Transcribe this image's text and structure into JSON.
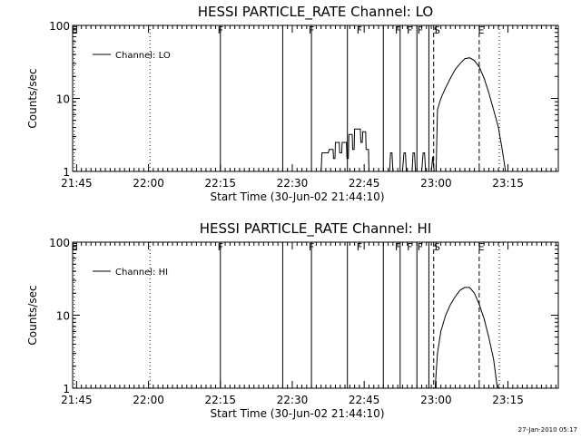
{
  "footer": {
    "timestamp": "27-Jan-2010 05:17"
  },
  "chart_data": [
    {
      "type": "line",
      "title": "HESSI PARTICLE_RATE Channel: LO",
      "xlabel": "Start Time (30-Jun-02 21:44:10)",
      "ylabel": "Counts/sec",
      "y_scale": "log",
      "ylim": [
        1,
        100
      ],
      "y_ticks": [
        "1",
        "10",
        "100"
      ],
      "x_ticks": [
        "21:45",
        "22:00",
        "22:15",
        "22:30",
        "22:45",
        "23:00",
        "23:15"
      ],
      "x_tick_minutes": [
        105,
        120,
        135,
        150,
        165,
        180,
        195
      ],
      "xlim_minutes": [
        104.17,
        205.5
      ],
      "legend": {
        "position": "top-left",
        "entries": [
          "Channel: LO"
        ]
      },
      "markers": {
        "E_dotted": [
          104.5,
          120.3,
          193.2
        ],
        "F_solid": [
          135.0,
          148.0,
          154.0,
          161.5,
          169.0,
          172.5,
          176.0,
          178.5
        ],
        "S_dashed": 179.5,
        "E_dashed": 189.0
      },
      "marker_labels": [
        {
          "text": "E",
          "t": 104.6
        },
        {
          "text": "F",
          "t": 135.0
        },
        {
          "text": "F",
          "t": 154.0
        },
        {
          "text": "F",
          "t": 164.0
        },
        {
          "text": "F",
          "t": 172.0
        },
        {
          "text": "F",
          "t": 174.5
        },
        {
          "text": "F",
          "t": 176.7
        },
        {
          "text": "S",
          "t": 180.2
        },
        {
          "text": "E",
          "t": 189.4
        }
      ],
      "series": [
        {
          "name": "Channel: LO",
          "segments": [
            [
              [
                156.0,
                1.0
              ],
              [
                156.2,
                1.8
              ],
              [
                157.5,
                1.8
              ],
              [
                157.7,
                2.0
              ],
              [
                158.5,
                2.0
              ],
              [
                158.6,
                1.5
              ],
              [
                158.9,
                1.5
              ],
              [
                159.0,
                2.5
              ],
              [
                159.8,
                2.5
              ],
              [
                159.9,
                1.8
              ],
              [
                160.3,
                1.8
              ],
              [
                160.4,
                2.5
              ],
              [
                161.3,
                2.5
              ],
              [
                161.4,
                1.5
              ],
              [
                161.7,
                1.5
              ],
              [
                161.8,
                3.2
              ],
              [
                162.5,
                3.2
              ],
              [
                162.6,
                2.0
              ],
              [
                162.9,
                2.0
              ],
              [
                163.0,
                3.8
              ],
              [
                164.2,
                3.8
              ],
              [
                164.3,
                2.5
              ],
              [
                164.6,
                2.5
              ],
              [
                164.7,
                3.5
              ],
              [
                165.3,
                3.5
              ],
              [
                165.4,
                2.0
              ],
              [
                165.9,
                2.0
              ],
              [
                166.0,
                1.0
              ]
            ],
            [
              [
                170.3,
                1.0
              ],
              [
                170.5,
                1.8
              ],
              [
                170.8,
                1.8
              ],
              [
                171.0,
                1.0
              ]
            ],
            [
              [
                173.0,
                1.0
              ],
              [
                173.3,
                1.8
              ],
              [
                173.6,
                1.8
              ],
              [
                173.8,
                1.0
              ]
            ],
            [
              [
                175.0,
                1.0
              ],
              [
                175.2,
                1.8
              ],
              [
                175.5,
                1.8
              ],
              [
                175.7,
                1.0
              ]
            ],
            [
              [
                177.0,
                1.0
              ],
              [
                177.3,
                1.8
              ],
              [
                177.6,
                1.8
              ],
              [
                177.8,
                1.0
              ]
            ],
            [
              [
                179.0,
                1.0
              ],
              [
                179.3,
                1.6
              ],
              [
                179.6,
                1.0
              ]
            ],
            [
              [
                180.0,
                1.0
              ],
              [
                180.3,
                7.0
              ],
              [
                181.0,
                10.0
              ],
              [
                182.0,
                14.0
              ],
              [
                183.0,
                19.0
              ],
              [
                184.0,
                25.0
              ],
              [
                185.0,
                30.0
              ],
              [
                186.0,
                35.0
              ],
              [
                187.0,
                36.0
              ],
              [
                188.0,
                33.0
              ],
              [
                189.0,
                27.0
              ],
              [
                190.0,
                19.0
              ],
              [
                191.0,
                12.0
              ],
              [
                192.0,
                7.0
              ],
              [
                193.0,
                4.0
              ],
              [
                193.8,
                2.0
              ],
              [
                194.5,
                1.0
              ]
            ]
          ]
        }
      ]
    },
    {
      "type": "line",
      "title": "HESSI PARTICLE_RATE Channel: HI",
      "xlabel": "Start Time (30-Jun-02 21:44:10)",
      "ylabel": "Counts/sec",
      "y_scale": "log",
      "ylim": [
        1,
        100
      ],
      "y_ticks": [
        "1",
        "10",
        "100"
      ],
      "x_ticks": [
        "21:45",
        "22:00",
        "22:15",
        "22:30",
        "22:45",
        "23:00",
        "23:15"
      ],
      "x_tick_minutes": [
        105,
        120,
        135,
        150,
        165,
        180,
        195
      ],
      "xlim_minutes": [
        104.17,
        205.5
      ],
      "legend": {
        "position": "top-left",
        "entries": [
          "Channel: HI"
        ]
      },
      "markers": {
        "E_dotted": [
          104.5,
          120.3,
          193.2
        ],
        "F_solid": [
          135.0,
          148.0,
          154.0,
          161.5,
          169.0,
          172.5,
          176.0,
          178.5
        ],
        "S_dashed": 179.5,
        "E_dashed": 189.0
      },
      "marker_labels": [
        {
          "text": "E",
          "t": 104.6
        },
        {
          "text": "F",
          "t": 135.0
        },
        {
          "text": "F",
          "t": 154.0
        },
        {
          "text": "F",
          "t": 164.0
        },
        {
          "text": "F",
          "t": 172.0
        },
        {
          "text": "F",
          "t": 174.5
        },
        {
          "text": "F",
          "t": 176.7
        },
        {
          "text": "S",
          "t": 180.2
        },
        {
          "text": "E",
          "t": 189.4
        }
      ],
      "series": [
        {
          "name": "Channel: HI",
          "segments": [
            [
              [
                179.8,
                1.0
              ],
              [
                180.3,
                3.0
              ],
              [
                181.0,
                6.0
              ],
              [
                182.0,
                10.0
              ],
              [
                183.0,
                14.0
              ],
              [
                184.0,
                18.0
              ],
              [
                185.0,
                22.0
              ],
              [
                186.0,
                24.0
              ],
              [
                187.0,
                24.0
              ],
              [
                188.0,
                20.0
              ],
              [
                189.0,
                14.0
              ],
              [
                190.0,
                9.0
              ],
              [
                191.0,
                5.0
              ],
              [
                192.0,
                2.5
              ],
              [
                192.8,
                1.0
              ]
            ]
          ]
        }
      ]
    }
  ]
}
